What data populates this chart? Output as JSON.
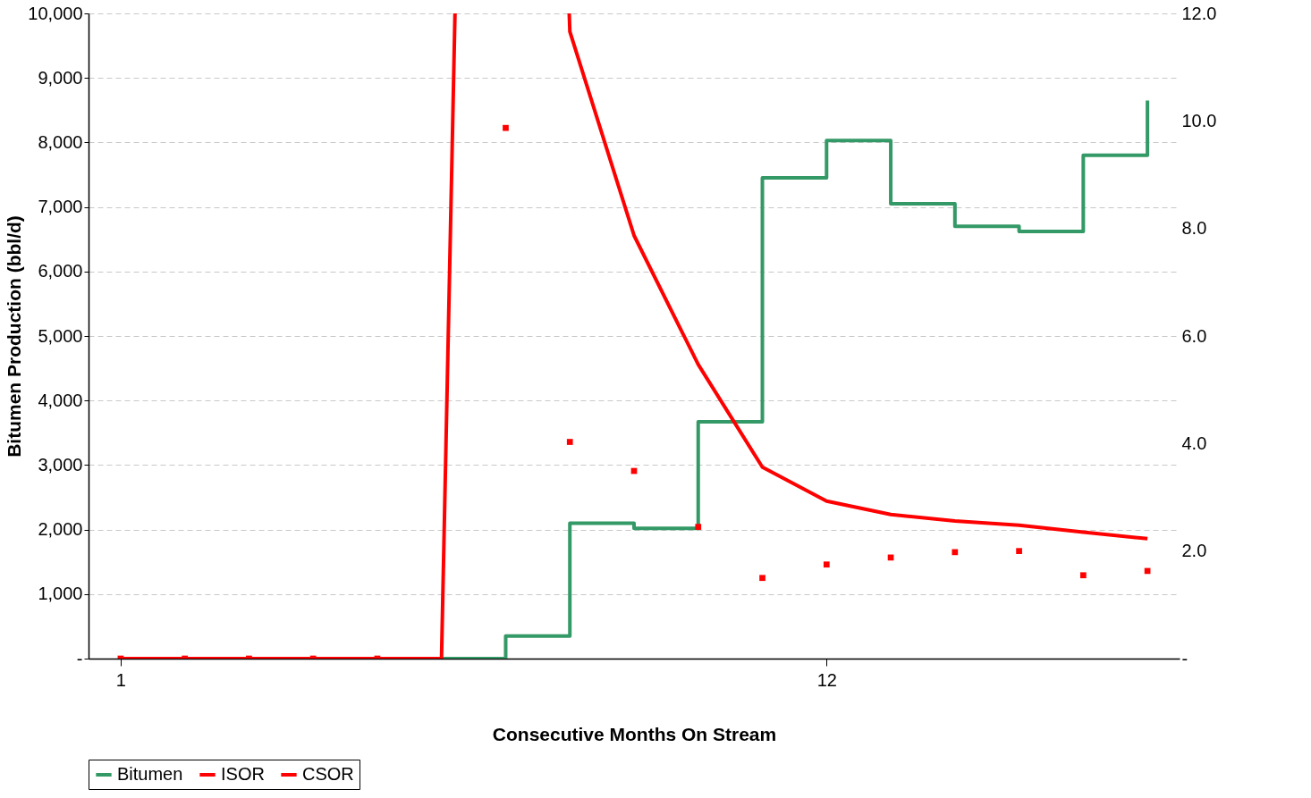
{
  "chart_data": {
    "type": "step",
    "xlabel": "Consecutive  Months  On Stream",
    "ylabel": "Bitumen Production (bbl/d)",
    "x": [
      1,
      2,
      3,
      4,
      5,
      6,
      7,
      8,
      9,
      10,
      11,
      12,
      13,
      14,
      15,
      16,
      17
    ],
    "xlim": [
      0.5,
      17.5
    ],
    "xticks": [
      {
        "value": 1,
        "label": "1"
      },
      {
        "value": 12,
        "label": "12"
      }
    ],
    "ylim": [
      0,
      10000
    ],
    "yticks": [
      {
        "value": 0,
        "label": "-"
      },
      {
        "value": 1000,
        "label": "1,000"
      },
      {
        "value": 2000,
        "label": "2,000"
      },
      {
        "value": 3000,
        "label": "3,000"
      },
      {
        "value": 4000,
        "label": "4,000"
      },
      {
        "value": 5000,
        "label": "5,000"
      },
      {
        "value": 6000,
        "label": "6,000"
      },
      {
        "value": 7000,
        "label": "7,000"
      },
      {
        "value": 8000,
        "label": "8,000"
      },
      {
        "value": 9000,
        "label": "9,000"
      },
      {
        "value": 10000,
        "label": "10,000"
      }
    ],
    "y2lim": [
      0,
      12
    ],
    "y2ticks": [
      {
        "value": 0,
        "label": "-"
      },
      {
        "value": 2,
        "label": "2.0"
      },
      {
        "value": 4,
        "label": "4.0"
      },
      {
        "value": 6,
        "label": "6.0"
      },
      {
        "value": 8,
        "label": "8.0"
      },
      {
        "value": 10,
        "label": "10.0"
      },
      {
        "value": 12,
        "label": "12.0"
      }
    ],
    "grid": "y",
    "legend": "bottom",
    "series": [
      {
        "name": "Bitumen",
        "type": "step",
        "color": "#339966",
        "values": [
          null,
          null,
          null,
          null,
          null,
          0,
          350,
          2100,
          2020,
          3670,
          7450,
          8030,
          7050,
          6700,
          6620,
          7800,
          8650
        ]
      },
      {
        "name": "ISOR",
        "type": "scatter",
        "axis": "y2",
        "marker": "square",
        "color": "#ff0000",
        "values": [
          0,
          0,
          0,
          0,
          0,
          null,
          9.87,
          4.03,
          3.49,
          2.45,
          1.5,
          1.75,
          1.88,
          1.98,
          2.0,
          1.55,
          1.63
        ]
      },
      {
        "name": "CSOR",
        "type": "line",
        "axis": "y2",
        "color": "#ff0000",
        "x": [
          1,
          2,
          3,
          4,
          5,
          6,
          6.21,
          7,
          7.99,
          8,
          9,
          10,
          11,
          12,
          13,
          14,
          15,
          16,
          17
        ],
        "values": [
          0,
          0,
          0,
          0,
          0,
          0,
          12,
          null,
          12,
          11.66,
          7.87,
          5.47,
          3.56,
          2.93,
          2.68,
          2.56,
          2.48,
          2.35,
          2.23
        ]
      }
    ]
  }
}
